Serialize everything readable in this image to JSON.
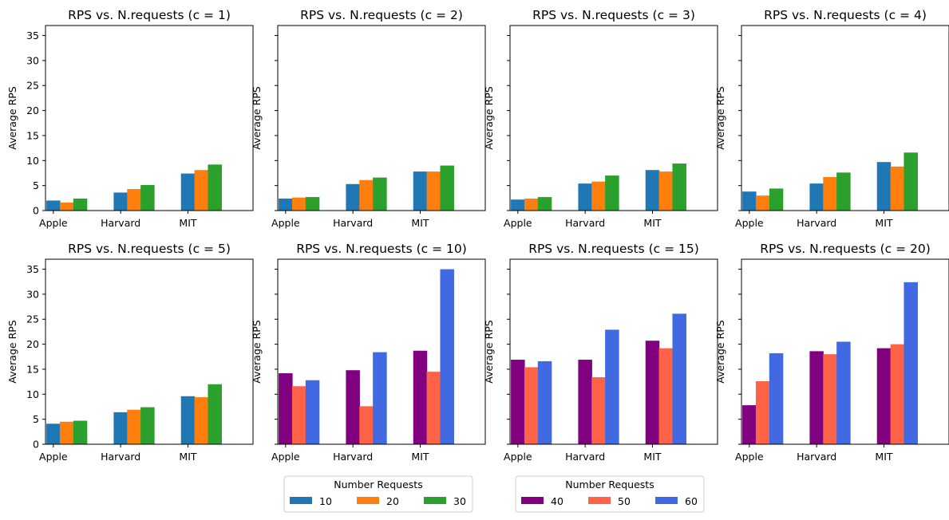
{
  "chart_data": [
    {
      "type": "bar",
      "title": "RPS vs. N.requests (c = 1)",
      "ylabel": "Average RPS",
      "categories": [
        "Apple",
        "Harvard",
        "MIT"
      ],
      "ylim": [
        0,
        37
      ],
      "yticks": [
        0,
        5,
        10,
        15,
        20,
        25,
        30,
        35
      ],
      "series": [
        {
          "name": "10",
          "values": [
            2.0,
            3.6,
            7.4
          ]
        },
        {
          "name": "20",
          "values": [
            1.6,
            4.3,
            8.1
          ]
        },
        {
          "name": "30",
          "values": [
            2.4,
            5.1,
            9.2
          ]
        }
      ]
    },
    {
      "type": "bar",
      "title": "RPS vs. N.requests (c = 2)",
      "ylabel": "Average RPS",
      "categories": [
        "Apple",
        "Harvard",
        "MIT"
      ],
      "ylim": [
        0,
        37
      ],
      "yticks": [
        0,
        5,
        10,
        15,
        20,
        25,
        30,
        35
      ],
      "series": [
        {
          "name": "10",
          "values": [
            2.4,
            5.3,
            7.8
          ]
        },
        {
          "name": "20",
          "values": [
            2.6,
            6.1,
            7.8
          ]
        },
        {
          "name": "30",
          "values": [
            2.7,
            6.6,
            9.0
          ]
        }
      ]
    },
    {
      "type": "bar",
      "title": "RPS vs. N.requests (c = 3)",
      "ylabel": "Average RPS",
      "categories": [
        "Apple",
        "Harvard",
        "MIT"
      ],
      "ylim": [
        0,
        37
      ],
      "yticks": [
        0,
        5,
        10,
        15,
        20,
        25,
        30,
        35
      ],
      "series": [
        {
          "name": "10",
          "values": [
            2.2,
            5.4,
            8.1
          ]
        },
        {
          "name": "20",
          "values": [
            2.4,
            5.8,
            7.8
          ]
        },
        {
          "name": "30",
          "values": [
            2.7,
            7.0,
            9.4
          ]
        }
      ]
    },
    {
      "type": "bar",
      "title": "RPS vs. N.requests (c = 4)",
      "ylabel": "Average RPS",
      "categories": [
        "Apple",
        "Harvard",
        "MIT"
      ],
      "ylim": [
        0,
        37
      ],
      "yticks": [
        0,
        5,
        10,
        15,
        20,
        25,
        30,
        35
      ],
      "series": [
        {
          "name": "10",
          "values": [
            3.8,
            5.4,
            9.7
          ]
        },
        {
          "name": "20",
          "values": [
            3.0,
            6.7,
            8.8
          ]
        },
        {
          "name": "30",
          "values": [
            4.4,
            7.6,
            11.6
          ]
        }
      ]
    },
    {
      "type": "bar",
      "title": "RPS vs. N.requests (c = 5)",
      "ylabel": "Average RPS",
      "categories": [
        "Apple",
        "Harvard",
        "MIT"
      ],
      "ylim": [
        0,
        37
      ],
      "yticks": [
        0,
        5,
        10,
        15,
        20,
        25,
        30,
        35
      ],
      "series": [
        {
          "name": "10",
          "values": [
            4.1,
            6.4,
            9.6
          ]
        },
        {
          "name": "20",
          "values": [
            4.5,
            6.9,
            9.4
          ]
        },
        {
          "name": "30",
          "values": [
            4.7,
            7.4,
            12.0
          ]
        }
      ]
    },
    {
      "type": "bar",
      "title": "RPS vs. N.requests (c = 10)",
      "ylabel": "Average RPS",
      "categories": [
        "Apple",
        "Harvard",
        "MIT"
      ],
      "ylim": [
        0,
        37
      ],
      "yticks": [
        0,
        5,
        10,
        15,
        20,
        25,
        30,
        35
      ],
      "series": [
        {
          "name": "40",
          "values": [
            14.2,
            14.8,
            18.7
          ]
        },
        {
          "name": "50",
          "values": [
            11.6,
            7.6,
            14.5
          ]
        },
        {
          "name": "60",
          "values": [
            12.8,
            18.4,
            35.0
          ]
        }
      ]
    },
    {
      "type": "bar",
      "title": "RPS vs. N.requests (c = 15)",
      "ylabel": "Average RPS",
      "categories": [
        "Apple",
        "Harvard",
        "MIT"
      ],
      "ylim": [
        0,
        37
      ],
      "yticks": [
        0,
        5,
        10,
        15,
        20,
        25,
        30,
        35
      ],
      "series": [
        {
          "name": "40",
          "values": [
            16.9,
            16.9,
            20.7
          ]
        },
        {
          "name": "50",
          "values": [
            15.4,
            13.4,
            19.2
          ]
        },
        {
          "name": "60",
          "values": [
            16.6,
            22.9,
            26.1
          ]
        }
      ]
    },
    {
      "type": "bar",
      "title": "RPS vs. N.requests (c = 20)",
      "ylabel": "Average RPS",
      "categories": [
        "Apple",
        "Harvard",
        "MIT"
      ],
      "ylim": [
        0,
        37
      ],
      "yticks": [
        0,
        5,
        10,
        15,
        20,
        25,
        30,
        35
      ],
      "series": [
        {
          "name": "40",
          "values": [
            7.8,
            18.6,
            19.2
          ]
        },
        {
          "name": "50",
          "values": [
            12.6,
            18.0,
            20.0
          ]
        },
        {
          "name": "60",
          "values": [
            18.2,
            20.5,
            32.4
          ]
        }
      ]
    }
  ],
  "legends": [
    {
      "title": "Number Requests",
      "entries": [
        {
          "label": "10",
          "color": "#1f77b4"
        },
        {
          "label": "20",
          "color": "#ff7f0e"
        },
        {
          "label": "30",
          "color": "#2ca02c"
        }
      ]
    },
    {
      "title": "Number Requests",
      "entries": [
        {
          "label": "40",
          "color": "#800080"
        },
        {
          "label": "50",
          "color": "#ff6347"
        },
        {
          "label": "60",
          "color": "#4169e1"
        }
      ]
    }
  ],
  "colors": {
    "first_group": [
      "#1f77b4",
      "#ff7f0e",
      "#2ca02c"
    ],
    "second_group": [
      "#800080",
      "#ff6347",
      "#4169e1"
    ]
  }
}
